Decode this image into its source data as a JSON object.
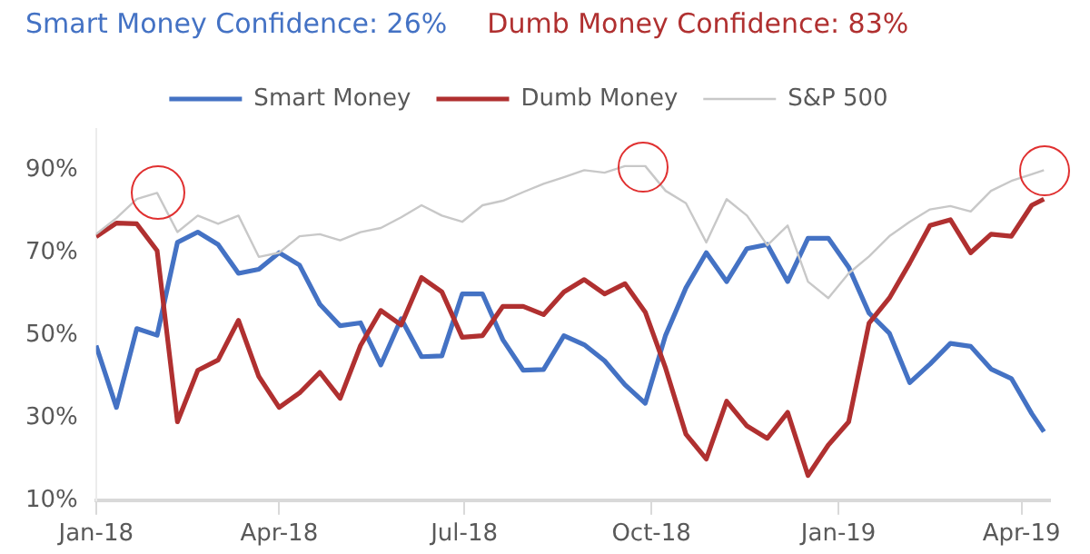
{
  "chart_data": {
    "type": "line",
    "title": "Smart Money Confidence: 26%",
    "subtitle": "Dumb Money Confidence: 83%",
    "x": [
      "2018-01-01",
      "2018-01-11",
      "2018-01-21",
      "2018-01-31",
      "2018-02-10",
      "2018-02-20",
      "2018-03-02",
      "2018-03-12",
      "2018-03-22",
      "2018-04-01",
      "2018-04-11",
      "2018-04-21",
      "2018-05-01",
      "2018-05-11",
      "2018-05-21",
      "2018-05-31",
      "2018-06-10",
      "2018-06-20",
      "2018-06-30",
      "2018-07-10",
      "2018-07-20",
      "2018-07-30",
      "2018-08-09",
      "2018-08-19",
      "2018-08-29",
      "2018-09-08",
      "2018-09-18",
      "2018-09-28",
      "2018-10-08",
      "2018-10-18",
      "2018-10-28",
      "2018-11-07",
      "2018-11-17",
      "2018-11-27",
      "2018-12-07",
      "2018-12-17",
      "2018-12-27",
      "2019-01-06",
      "2019-01-16",
      "2019-01-26",
      "2019-02-05",
      "2019-02-15",
      "2019-02-25",
      "2019-03-07",
      "2019-03-17",
      "2019-03-27",
      "2019-04-06",
      "2019-04-12"
    ],
    "series": [
      {
        "name": "Smart Money",
        "color": "#4472c4",
        "values": [
          47.5,
          32.5,
          51.6,
          50,
          72.5,
          75,
          72,
          65,
          66,
          70,
          67,
          57.5,
          52.3,
          53,
          42.8,
          54,
          44.8,
          45,
          60,
          60,
          48.9,
          41.5,
          41.7,
          49.9,
          47.7,
          43.8,
          38,
          33.5,
          50,
          61.5,
          70,
          63,
          71,
          72,
          63,
          73.5,
          73.5,
          66.5,
          55.4,
          50.5,
          38.5,
          43,
          48,
          47.3,
          41.8,
          39.5,
          31,
          26.6
        ]
      },
      {
        "name": "Dumb Money",
        "color": "#b03030",
        "values": [
          73.9,
          77.2,
          77,
          70.5,
          29,
          41.5,
          44,
          53.6,
          40,
          32.5,
          36,
          41,
          34.7,
          47.5,
          56,
          52.5,
          64,
          60.5,
          49.5,
          49.9,
          57,
          57,
          55,
          60.5,
          63.5,
          60,
          62.5,
          55.6,
          42,
          26,
          20,
          34,
          28,
          25,
          31.3,
          16,
          23.4,
          29,
          52.9,
          59,
          67.5,
          76.6,
          78,
          70,
          74.5,
          74,
          81.5,
          83
        ]
      },
      {
        "name": "S&P 500",
        "color": "#c8c8c8",
        "values": [
          74.5,
          78.4,
          83,
          84.5,
          75,
          79,
          77,
          79,
          69,
          70,
          74,
          74.5,
          73,
          75,
          76,
          78.6,
          81.5,
          79,
          77.5,
          81.5,
          82.6,
          84.7,
          86.7,
          88.3,
          90,
          89.4,
          91,
          91,
          85,
          82,
          72.5,
          83,
          79,
          71.8,
          76.6,
          63,
          59,
          65,
          69.1,
          74,
          77.5,
          80.5,
          81.3,
          80,
          85,
          87.4,
          89,
          90
        ]
      }
    ],
    "xlim": [
      "2018-01-01",
      "2019-04-15"
    ],
    "xticks": [
      {
        "value": "2018-01-01",
        "label": "Jan-18"
      },
      {
        "value": "2018-04-01",
        "label": "Apr-18"
      },
      {
        "value": "2018-07-01",
        "label": "Jul-18"
      },
      {
        "value": "2018-10-01",
        "label": "Oct-18"
      },
      {
        "value": "2019-01-01",
        "label": "Jan-19"
      },
      {
        "value": "2019-04-01",
        "label": "Apr-19"
      }
    ],
    "ylim": [
      10,
      100
    ],
    "yticks": [
      {
        "value": 10,
        "label": "10%"
      },
      {
        "value": 30,
        "label": "30%"
      },
      {
        "value": 50,
        "label": "50%"
      },
      {
        "value": 70,
        "label": "70%"
      },
      {
        "value": 90,
        "label": "90%"
      }
    ],
    "legend": "top",
    "marker": "none",
    "line_style": "solid"
  }
}
